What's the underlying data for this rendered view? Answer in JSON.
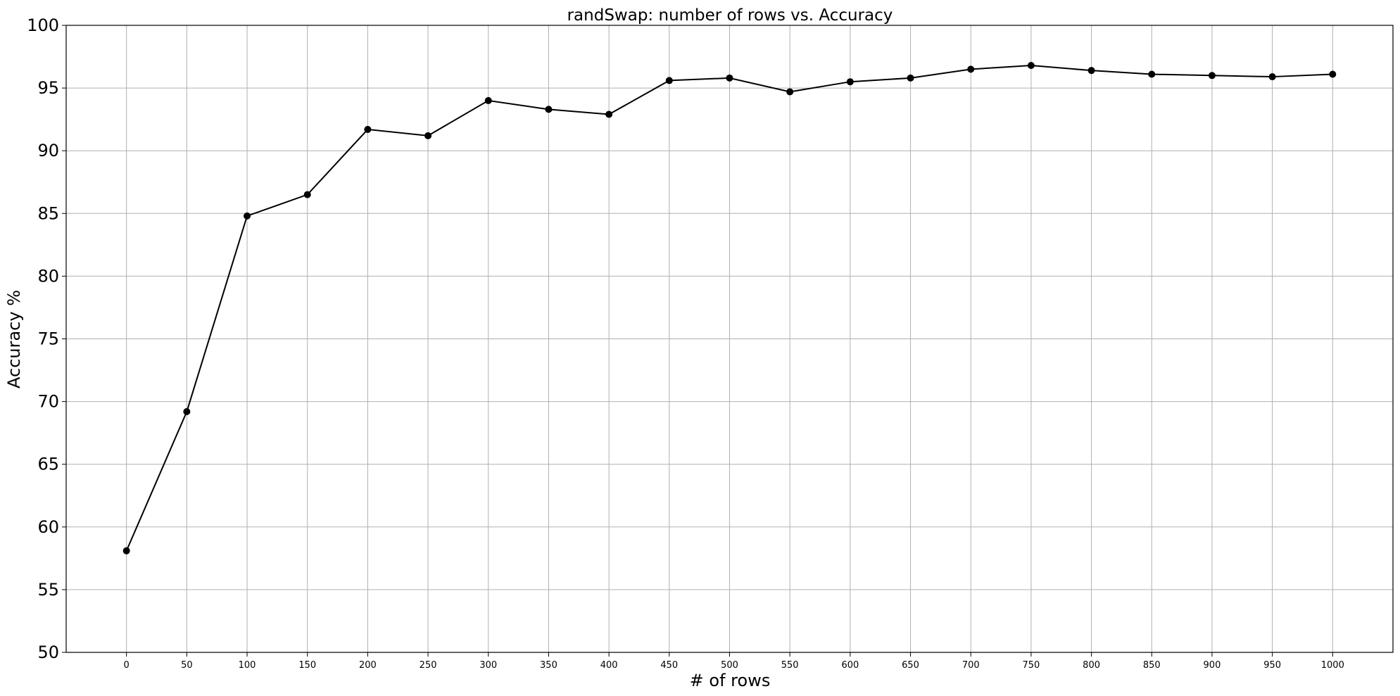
{
  "chart_data": {
    "type": "line",
    "title": "randSwap: number of rows vs. Accuracy",
    "xlabel": "# of rows",
    "ylabel": "Accuracy %",
    "x": [
      0,
      50,
      100,
      150,
      200,
      250,
      300,
      350,
      400,
      450,
      500,
      550,
      600,
      650,
      700,
      750,
      800,
      850,
      900,
      950,
      1000
    ],
    "series": [
      {
        "values": [
          58.1,
          69.2,
          84.8,
          86.5,
          91.7,
          91.2,
          94.0,
          93.3,
          92.9,
          95.6,
          95.8,
          94.7,
          95.5,
          95.8,
          96.5,
          96.8,
          96.4,
          96.1,
          96.0,
          95.9,
          96.1
        ],
        "color": "#000000",
        "marker": "circle"
      }
    ],
    "xticks": [
      0,
      50,
      100,
      150,
      200,
      250,
      300,
      350,
      400,
      450,
      500,
      550,
      600,
      650,
      700,
      750,
      800,
      850,
      900,
      950,
      1000
    ],
    "yticks": [
      50,
      55,
      60,
      65,
      70,
      75,
      80,
      85,
      90,
      95,
      100
    ],
    "xlim": [
      -50,
      1050
    ],
    "ylim": [
      50,
      100
    ],
    "grid": true
  }
}
